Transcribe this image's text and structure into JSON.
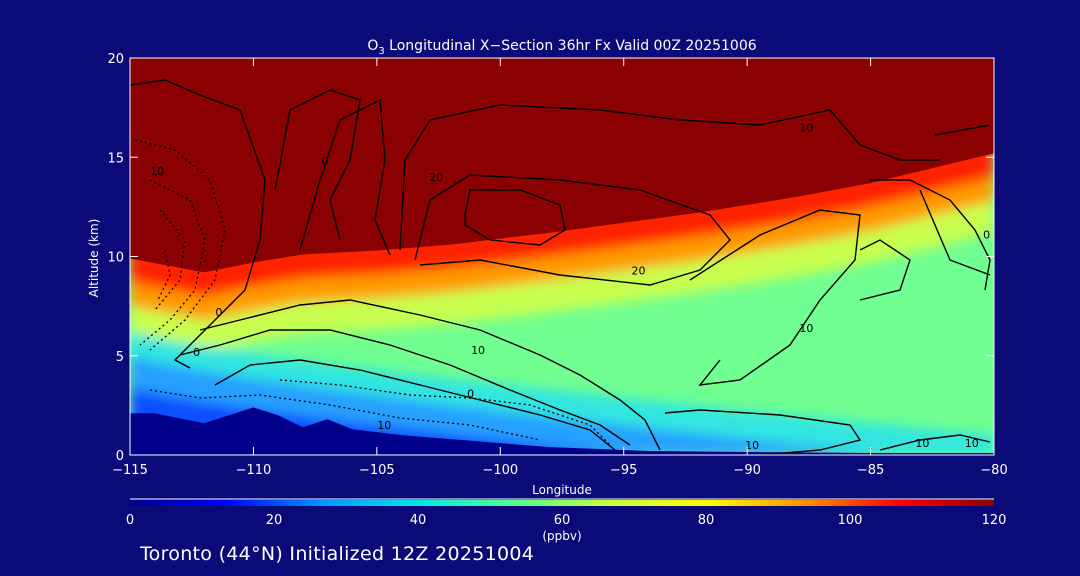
{
  "chart_data": {
    "type": "heatmap",
    "title_species": "O",
    "title_subscript": "3",
    "title_rest": " Longitudinal X−Section 36hr  Fx Valid 00Z 20251006",
    "xlabel": "Longitude",
    "ylabel": "Altitude (km)",
    "xlim": [
      -115,
      -80
    ],
    "ylim": [
      0,
      20
    ],
    "x_ticks": [
      -115,
      -110,
      -105,
      -100,
      -95,
      -90,
      -85,
      -80
    ],
    "x_tick_labels": [
      "−115",
      "−110",
      "−105",
      "−100",
      "−95",
      "−90",
      "−85",
      "−80"
    ],
    "y_ticks": [
      0,
      5,
      10,
      15,
      20
    ],
    "y_tick_labels": [
      "0",
      "5",
      "10",
      "15",
      "20"
    ],
    "colorbar": {
      "min": 0,
      "max": 120,
      "ticks": [
        0,
        20,
        40,
        60,
        80,
        100,
        120
      ],
      "tick_labels": [
        "0",
        "20",
        "40",
        "60",
        "80",
        "100",
        "120"
      ],
      "units": "(ppbv)",
      "colors": [
        "#00008b",
        "#0000ff",
        "#0096ff",
        "#00e6e6",
        "#50ff90",
        "#c8ff40",
        "#ffff00",
        "#ff9600",
        "#ff0000",
        "#8b0000"
      ]
    },
    "fill_colors": {
      "ground": "#00008b",
      "low_blue": "#1050ff",
      "mid_blue": "#28a0ff",
      "cyan": "#30e6e0",
      "green": "#70ff90",
      "yellow_green": "#c8ff50",
      "stratosphere": "#8b0000"
    },
    "tropopause_km": [
      [
        -115,
        9.5
      ],
      [
        -112,
        8.8
      ],
      [
        -110,
        9.3
      ],
      [
        -108,
        9.7
      ],
      [
        -105,
        9.9
      ],
      [
        -102,
        10.2
      ],
      [
        -100,
        10.5
      ],
      [
        -98,
        10.8
      ],
      [
        -95,
        11.3
      ],
      [
        -92,
        11.8
      ],
      [
        -90,
        12.2
      ],
      [
        -88,
        12.6
      ],
      [
        -85,
        13.3
      ],
      [
        -82,
        14.2
      ],
      [
        -80,
        14.8
      ]
    ],
    "terrain_km": [
      [
        -115,
        2.1
      ],
      [
        -114,
        2.1
      ],
      [
        -112,
        1.6
      ],
      [
        -110,
        2.4
      ],
      [
        -109,
        2.0
      ],
      [
        -108,
        1.4
      ],
      [
        -107,
        1.8
      ],
      [
        -106,
        1.3
      ],
      [
        -104,
        1.0
      ],
      [
        -102,
        0.8
      ],
      [
        -100,
        0.6
      ],
      [
        -98,
        0.4
      ],
      [
        -96,
        0.3
      ],
      [
        -94,
        0.2
      ],
      [
        -90,
        0.15
      ],
      [
        -85,
        0.1
      ],
      [
        -80,
        0.1
      ]
    ],
    "contour_labels": [
      {
        "lon": -107.1,
        "alt": 14.6,
        "text": "0"
      },
      {
        "lon": -113.9,
        "alt": 14.1,
        "text": "10"
      },
      {
        "lon": -87.6,
        "alt": 16.3,
        "text": "10"
      },
      {
        "lon": -102.6,
        "alt": 13.8,
        "text": "20"
      },
      {
        "lon": -80.3,
        "alt": 10.9,
        "text": "0"
      },
      {
        "lon": -111.4,
        "alt": 7.0,
        "text": "0"
      },
      {
        "lon": -112.3,
        "alt": 5.0,
        "text": "0"
      },
      {
        "lon": -94.4,
        "alt": 9.1,
        "text": "20"
      },
      {
        "lon": -100.9,
        "alt": 5.1,
        "text": "10"
      },
      {
        "lon": -87.6,
        "alt": 6.2,
        "text": "10"
      },
      {
        "lon": -101.2,
        "alt": 2.9,
        "text": "0"
      },
      {
        "lon": -104.7,
        "alt": 1.3,
        "text": "10"
      },
      {
        "lon": -89.8,
        "alt": 0.3,
        "text": "10"
      },
      {
        "lon": -82.9,
        "alt": 0.4,
        "text": "10"
      },
      {
        "lon": -80.9,
        "alt": 0.4,
        "text": "10"
      }
    ]
  },
  "footer": {
    "text": "Toronto (44°N) Initialized 12Z 20251004"
  }
}
